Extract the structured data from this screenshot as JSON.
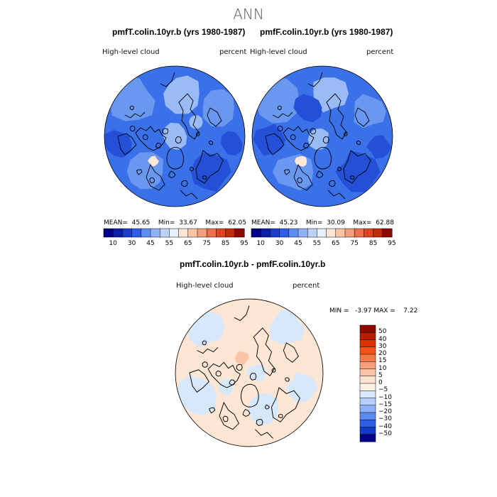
{
  "title": "ANN",
  "panels": [
    {
      "subtitle": "pmfT.colin.10yr.b (yrs 1980-1987)",
      "left_label": "High-level  cloud",
      "right_label": "percent",
      "stats": {
        "mean_label": "MEAN=",
        "mean": "45.65",
        "min_label": "Min=",
        "min": "33.67",
        "max_label": "Max=",
        "max": "62.05"
      }
    },
    {
      "subtitle": "pmfF.colin.10yr.b (yrs 1980-1987)",
      "left_label": "High-level  cloud",
      "right_label": "percent",
      "stats": {
        "mean_label": "MEAN=",
        "mean": "45.23",
        "min_label": "Min=",
        "min": "30.09",
        "max_label": "Max=",
        "max": "62.88"
      }
    }
  ],
  "diff_panel": {
    "subtitle": "pmfT.colin.10yr.b - pmfF.colin.10yr.b",
    "left_label": "High-level  cloud",
    "right_label": "percent",
    "stats": {
      "min_label": "MIN =",
      "min": "-3.97",
      "max_label": "MAX =",
      "max": "7.22"
    }
  },
  "horizontal_colorbar": {
    "colors": [
      "#00008a",
      "#0b1ea8",
      "#1d3fd0",
      "#2e5fe8",
      "#5f8cf3",
      "#8fb2f7",
      "#bcd3f9",
      "#e6f0fb",
      "#fde6d3",
      "#f9c5a6",
      "#f59e7b",
      "#ee6f4d",
      "#e0441f",
      "#c02a0a",
      "#8b0b00"
    ],
    "tick_labels": [
      "10",
      "30",
      "45",
      "55",
      "65",
      "75",
      "85",
      "95"
    ]
  },
  "vertical_colorbar": {
    "colors": [
      "#8b0b00",
      "#b81d00",
      "#dc3300",
      "#f25418",
      "#f57a48",
      "#f8a07a",
      "#fbc3a8",
      "#fde3d1",
      "#fdf1e6",
      "#d9e8fb",
      "#b4cffa",
      "#8cb0f6",
      "#5d8af0",
      "#2e5fe6",
      "#1438c8",
      "#00008a"
    ],
    "tick_labels": [
      "50",
      "40",
      "30",
      "20",
      "15",
      "10",
      "5",
      "0",
      "-5",
      "-10",
      "-15",
      "-20",
      "-30",
      "-40",
      "-50"
    ]
  },
  "map_colors": {
    "panel_base": "#3a70e8",
    "panel_light": "#6a98f0",
    "panel_lighter": "#9bbbf5",
    "panel_dark": "#2450d8",
    "panel_pale": "#fde8d8",
    "diff_warm": "#fde7d4",
    "diff_cool": "#d8e8fb",
    "diff_warmer": "#f8c3a8",
    "coast": "#000000"
  }
}
